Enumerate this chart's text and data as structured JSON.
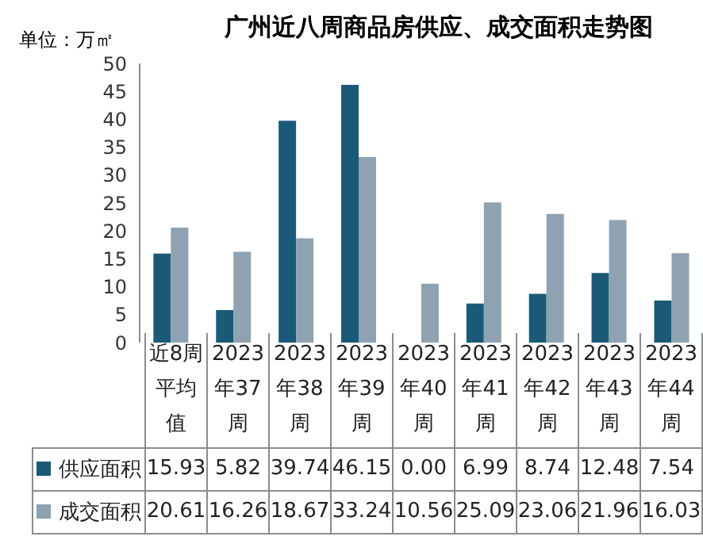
{
  "chart_data": {
    "type": "bar",
    "title": "广州近八周商品房供应、成交面积走势图",
    "ylabel": "单位：万㎡",
    "categories": [
      "近8周平均值",
      "2023年37周",
      "2023年38周",
      "2023年39周",
      "2023年40周",
      "2023年41周",
      "2023年42周",
      "2023年43周",
      "2023年44周"
    ],
    "series": [
      {
        "name": "供应面积",
        "color": "#1a5a78",
        "values": [
          15.93,
          5.82,
          39.74,
          46.15,
          0,
          6.99,
          8.74,
          12.48,
          7.54
        ],
        "value_labels": [
          "15.93",
          "5.82",
          "39.74",
          "46.15",
          "0.00",
          "6.99",
          "8.74",
          "12.48",
          "7.54"
        ]
      },
      {
        "name": "成交面积",
        "color": "#8ea2b1",
        "values": [
          20.61,
          16.26,
          18.67,
          33.24,
          10.56,
          25.09,
          23.06,
          21.96,
          16.03
        ],
        "value_labels": [
          "20.61",
          "16.26",
          "18.67",
          "33.24",
          "10.56",
          "25.09",
          "23.06",
          "21.96",
          "16.03"
        ]
      }
    ],
    "ylim": [
      0,
      50
    ],
    "yticks": [
      0,
      5,
      10,
      15,
      20,
      25,
      30,
      35,
      40,
      45,
      50
    ],
    "grid": false,
    "legend": "bottom"
  }
}
